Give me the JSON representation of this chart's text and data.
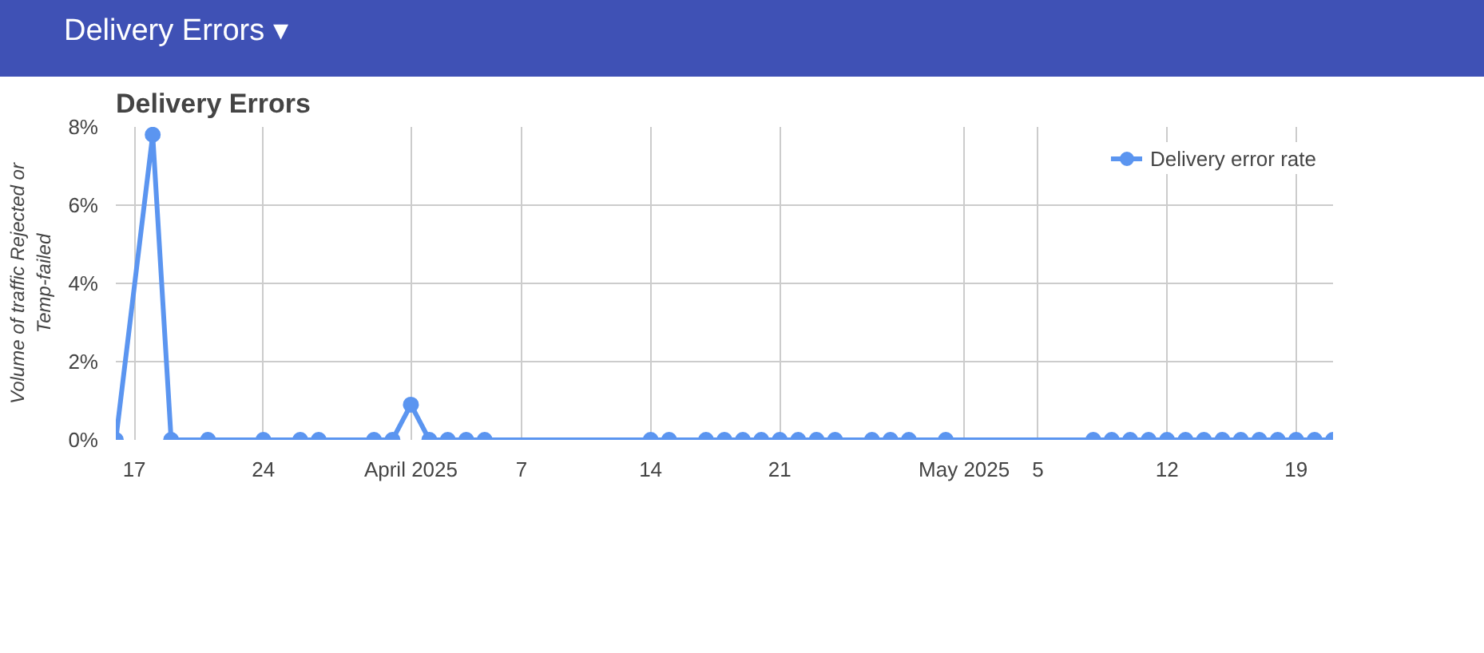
{
  "chart_data": {
    "type": "line",
    "title": "Delivery Errors",
    "annotations": [
      "Delivery Errors ▾"
    ],
    "ylabel": "Volume of traffic Rejected or Temp-failed",
    "x": [
      "2025-03-16",
      "2025-03-18",
      "2025-03-19",
      "2025-03-21",
      "2025-03-24",
      "2025-03-26",
      "2025-03-27",
      "2025-03-30",
      "2025-03-31",
      "2025-04-01",
      "2025-04-02",
      "2025-04-03",
      "2025-04-04",
      "2025-04-05",
      "2025-04-14",
      "2025-04-15",
      "2025-04-17",
      "2025-04-18",
      "2025-04-19",
      "2025-04-20",
      "2025-04-21",
      "2025-04-22",
      "2025-04-23",
      "2025-04-24",
      "2025-04-26",
      "2025-04-27",
      "2025-04-28",
      "2025-04-30",
      "2025-05-08",
      "2025-05-09",
      "2025-05-10",
      "2025-05-11",
      "2025-05-12",
      "2025-05-13",
      "2025-05-14",
      "2025-05-15",
      "2025-05-16",
      "2025-05-17",
      "2025-05-18",
      "2025-05-19",
      "2025-05-20",
      "2025-05-21"
    ],
    "series": [
      {
        "name": "Delivery error rate",
        "color": "#5b95f0",
        "values": [
          0,
          7.8,
          0,
          0,
          0,
          0,
          0,
          0,
          0,
          0.9,
          0,
          0,
          0,
          0,
          0,
          0,
          0,
          0,
          0,
          0,
          0,
          0,
          0,
          0,
          0,
          0,
          0,
          0,
          0,
          0,
          0,
          0,
          0,
          0,
          0,
          0,
          0,
          0,
          0,
          0,
          0,
          0
        ]
      }
    ],
    "xlim": [
      "2025-03-16",
      "2025-05-21"
    ],
    "xticks": [
      {
        "value": "2025-03-17",
        "label": "17"
      },
      {
        "value": "2025-03-24",
        "label": "24"
      },
      {
        "value": "2025-04-01",
        "label": "April 2025"
      },
      {
        "value": "2025-04-07",
        "label": "7"
      },
      {
        "value": "2025-04-14",
        "label": "14"
      },
      {
        "value": "2025-04-21",
        "label": "21"
      },
      {
        "value": "2025-05-01",
        "label": "May 2025"
      },
      {
        "value": "2025-05-05",
        "label": "5"
      },
      {
        "value": "2025-05-12",
        "label": "12"
      },
      {
        "value": "2025-05-19",
        "label": "19"
      }
    ],
    "ylim": [
      0,
      8
    ],
    "yticks": [
      {
        "value": 0,
        "label": "0%"
      },
      {
        "value": 2,
        "label": "2%"
      },
      {
        "value": 4,
        "label": "4%"
      },
      {
        "value": 6,
        "label": "6%"
      },
      {
        "value": 8,
        "label": "8%"
      }
    ],
    "grid": true,
    "legend": "top right",
    "marker": "circle",
    "line_style": "solid"
  }
}
